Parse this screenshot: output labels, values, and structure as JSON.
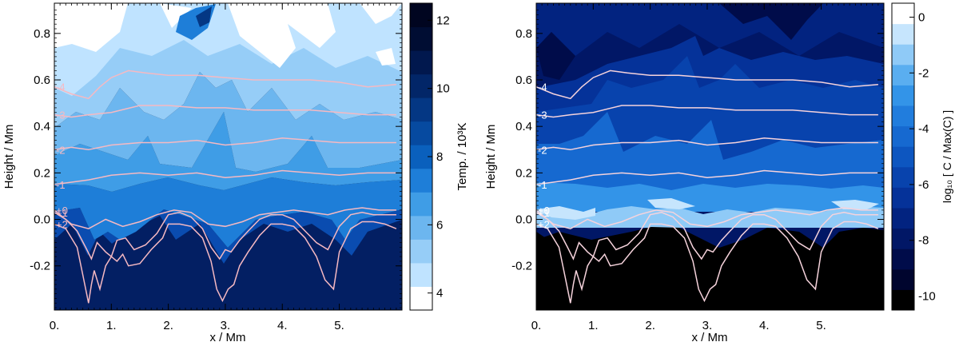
{
  "chart_data": [
    {
      "type": "heatmap",
      "id": "left",
      "xlabel": "x / Mm",
      "ylabel": "Height / Mm",
      "xlim": [
        0,
        6.1
      ],
      "ylim": [
        -0.39,
        0.93
      ],
      "x_ticks": [
        0,
        1,
        2,
        3,
        4,
        5
      ],
      "x_tick_labels": [
        "0.",
        "1.",
        "2.",
        "3.",
        "4.",
        "5."
      ],
      "y_ticks": [
        -0.2,
        0.0,
        0.2,
        0.4,
        0.6,
        0.8
      ],
      "y_tick_labels": [
        "-0.2",
        "0.0",
        "0.2",
        "0.4",
        "0.6",
        "0.8"
      ],
      "colorbar": {
        "label": "Temp. / 10³K",
        "range": [
          3.5,
          12.5
        ],
        "ticks": [
          4,
          6,
          8,
          10,
          12
        ],
        "tick_labels": [
          "4",
          "6",
          "8",
          "10",
          "12"
        ],
        "colors": [
          "#ffffff",
          "#bfe3ff",
          "#96cdf7",
          "#6cb6ef",
          "#3f9de6",
          "#1e7ed8",
          "#0a60bd",
          "#064aa0",
          "#043784",
          "#022668",
          "#01184e",
          "#000d33",
          "#000520"
        ]
      },
      "contour_color": "#f6b9c2",
      "contour_lines": [
        {
          "label": "-4",
          "x": [
            0.0,
            0.3,
            0.6,
            0.8,
            1.0,
            1.3,
            1.6,
            2.0,
            2.5,
            3.0,
            3.5,
            4.0,
            4.5,
            5.0,
            5.5,
            6.0
          ],
          "y": [
            0.57,
            0.54,
            0.52,
            0.57,
            0.61,
            0.64,
            0.63,
            0.62,
            0.62,
            0.61,
            0.6,
            0.6,
            0.6,
            0.59,
            0.57,
            0.58
          ]
        },
        {
          "label": "-3",
          "x": [
            0.0,
            0.3,
            0.6,
            1.0,
            1.5,
            2.0,
            2.5,
            3.0,
            3.5,
            4.0,
            4.5,
            5.0,
            5.5,
            6.0
          ],
          "y": [
            0.45,
            0.44,
            0.45,
            0.46,
            0.49,
            0.49,
            0.48,
            0.48,
            0.47,
            0.47,
            0.47,
            0.46,
            0.45,
            0.45
          ]
        },
        {
          "label": "-2",
          "x": [
            0.0,
            0.3,
            0.6,
            1.0,
            1.5,
            2.0,
            2.5,
            3.0,
            3.5,
            4.0,
            4.5,
            5.0,
            5.5,
            6.0
          ],
          "y": [
            0.3,
            0.31,
            0.3,
            0.32,
            0.33,
            0.33,
            0.34,
            0.32,
            0.33,
            0.35,
            0.34,
            0.33,
            0.33,
            0.33
          ]
        },
        {
          "label": "-1",
          "x": [
            0.0,
            0.3,
            0.6,
            1.0,
            1.5,
            2.0,
            2.5,
            3.0,
            3.5,
            4.0,
            4.5,
            5.0,
            5.5,
            6.0
          ],
          "y": [
            0.15,
            0.16,
            0.17,
            0.19,
            0.2,
            0.19,
            0.2,
            0.18,
            0.19,
            0.21,
            0.2,
            0.19,
            0.2,
            0.2
          ]
        },
        {
          "label": "+0",
          "x": [
            0.0,
            0.3,
            0.6,
            0.9,
            1.2,
            1.5,
            1.8,
            2.1,
            2.4,
            2.7,
            3.0,
            3.3,
            3.6,
            3.9,
            4.2,
            4.5,
            4.8,
            5.1,
            5.4,
            5.7,
            6.0
          ],
          "y": [
            0.04,
            -0.02,
            -0.04,
            0.0,
            -0.03,
            -0.01,
            0.02,
            0.04,
            0.03,
            -0.02,
            -0.03,
            -0.01,
            0.02,
            0.03,
            0.04,
            0.03,
            0.02,
            0.04,
            0.05,
            0.04,
            0.04
          ]
        },
        {
          "label": "+1",
          "x": [
            0.0,
            0.2,
            0.4,
            0.55,
            0.65,
            0.75,
            0.9,
            1.0,
            1.1,
            1.25,
            1.4,
            1.6,
            1.8,
            2.0,
            2.2,
            2.4,
            2.6,
            2.75,
            2.9,
            3.0,
            3.1,
            3.25,
            3.4,
            3.6,
            3.8,
            4.0,
            4.2,
            4.4,
            4.6,
            4.8,
            5.0,
            5.2,
            5.4,
            5.6,
            5.8,
            6.0
          ],
          "y": [
            0.03,
            0.0,
            -0.05,
            -0.12,
            -0.17,
            -0.1,
            -0.14,
            -0.16,
            -0.09,
            -0.08,
            -0.13,
            -0.11,
            -0.06,
            0.02,
            0.03,
            0.01,
            -0.04,
            -0.12,
            -0.17,
            -0.13,
            -0.14,
            -0.09,
            -0.05,
            0.0,
            0.02,
            0.02,
            0.0,
            -0.05,
            -0.1,
            -0.13,
            -0.03,
            0.02,
            0.03,
            0.02,
            0.02,
            0.02
          ]
        },
        {
          "label": "+2",
          "x": [
            0.0,
            0.2,
            0.4,
            0.5,
            0.6,
            0.65,
            0.7,
            0.8,
            0.9,
            1.0,
            1.1,
            1.2,
            1.3,
            1.5,
            1.7,
            1.9,
            2.0,
            2.2,
            2.4,
            2.6,
            2.75,
            2.85,
            2.95,
            3.05,
            3.15,
            3.25,
            3.4,
            3.6,
            3.8,
            4.0,
            4.2,
            4.4,
            4.6,
            4.75,
            4.9,
            5.0,
            5.2,
            5.4,
            5.6,
            5.8,
            6.0
          ],
          "y": [
            -0.02,
            -0.04,
            -0.12,
            -0.24,
            -0.36,
            -0.28,
            -0.22,
            -0.3,
            -0.2,
            -0.16,
            -0.18,
            -0.15,
            -0.2,
            -0.19,
            -0.13,
            -0.08,
            -0.02,
            -0.02,
            -0.03,
            -0.08,
            -0.18,
            -0.3,
            -0.35,
            -0.3,
            -0.28,
            -0.2,
            -0.14,
            -0.07,
            -0.02,
            -0.02,
            -0.03,
            -0.08,
            -0.16,
            -0.26,
            -0.3,
            -0.14,
            -0.04,
            -0.01,
            -0.01,
            -0.02,
            -0.04
          ]
        }
      ]
    },
    {
      "type": "heatmap",
      "id": "right",
      "xlabel": "x / Mm",
      "ylabel": "Height / Mm",
      "xlim": [
        0,
        6.1
      ],
      "ylim": [
        -0.39,
        0.93
      ],
      "x_ticks": [
        0,
        1,
        2,
        3,
        4,
        5
      ],
      "x_tick_labels": [
        "0.",
        "1.",
        "2.",
        "3.",
        "4.",
        "5."
      ],
      "y_ticks": [
        -0.2,
        0.0,
        0.2,
        0.4,
        0.6,
        0.8
      ],
      "y_tick_labels": [
        "-0.2",
        "0.0",
        "0.2",
        "0.4",
        "0.6",
        "0.8"
      ],
      "colorbar": {
        "label": "log₁₀ [ C / Max(C) ]",
        "range": [
          -10.5,
          0.5
        ],
        "ticks": [
          -10,
          -8,
          -6,
          -4,
          -2,
          0
        ],
        "tick_labels": [
          "-10",
          "-8",
          "-6",
          "-4",
          "-2",
          "0"
        ],
        "colors": [
          "#000000",
          "#00052e",
          "#000c4a",
          "#011766",
          "#022380",
          "#053299",
          "#0843ad",
          "#0d56c0",
          "#1669d0",
          "#217ddd",
          "#3394e8",
          "#5aaef0",
          "#8fcaf7",
          "#c6e5fd",
          "#ffffff"
        ]
      },
      "contour_color": "#f6d3dc",
      "contour_lines": [
        {
          "label": "-4",
          "x": [
            0.0,
            0.3,
            0.6,
            0.8,
            1.0,
            1.3,
            1.6,
            2.0,
            2.5,
            3.0,
            3.5,
            4.0,
            4.5,
            5.0,
            5.5,
            6.0
          ],
          "y": [
            0.57,
            0.54,
            0.52,
            0.57,
            0.61,
            0.64,
            0.63,
            0.62,
            0.62,
            0.61,
            0.6,
            0.6,
            0.6,
            0.59,
            0.57,
            0.58
          ]
        },
        {
          "label": "-3",
          "x": [
            0.0,
            0.3,
            0.6,
            1.0,
            1.5,
            2.0,
            2.5,
            3.0,
            3.5,
            4.0,
            4.5,
            5.0,
            5.5,
            6.0
          ],
          "y": [
            0.45,
            0.44,
            0.45,
            0.46,
            0.49,
            0.49,
            0.48,
            0.48,
            0.47,
            0.47,
            0.47,
            0.46,
            0.45,
            0.45
          ]
        },
        {
          "label": "-2",
          "x": [
            0.0,
            0.3,
            0.6,
            1.0,
            1.5,
            2.0,
            2.5,
            3.0,
            3.5,
            4.0,
            4.5,
            5.0,
            5.5,
            6.0
          ],
          "y": [
            0.3,
            0.31,
            0.3,
            0.32,
            0.33,
            0.33,
            0.34,
            0.32,
            0.33,
            0.35,
            0.34,
            0.33,
            0.33,
            0.33
          ]
        },
        {
          "label": "-1",
          "x": [
            0.0,
            0.3,
            0.6,
            1.0,
            1.5,
            2.0,
            2.5,
            3.0,
            3.5,
            4.0,
            4.5,
            5.0,
            5.5,
            6.0
          ],
          "y": [
            0.15,
            0.16,
            0.17,
            0.19,
            0.2,
            0.19,
            0.2,
            0.18,
            0.19,
            0.21,
            0.2,
            0.19,
            0.2,
            0.2
          ]
        },
        {
          "label": "+0",
          "x": [
            0.0,
            0.3,
            0.6,
            0.9,
            1.2,
            1.5,
            1.8,
            2.1,
            2.4,
            2.7,
            3.0,
            3.3,
            3.6,
            3.9,
            4.2,
            4.5,
            4.8,
            5.1,
            5.4,
            5.7,
            6.0
          ],
          "y": [
            0.04,
            -0.02,
            -0.04,
            0.0,
            -0.03,
            -0.01,
            0.02,
            0.04,
            0.03,
            -0.02,
            -0.03,
            -0.01,
            0.02,
            0.03,
            0.04,
            0.03,
            0.02,
            0.04,
            0.05,
            0.04,
            0.04
          ]
        },
        {
          "label": "+1",
          "x": [
            0.0,
            0.2,
            0.4,
            0.55,
            0.65,
            0.75,
            0.9,
            1.0,
            1.1,
            1.25,
            1.4,
            1.6,
            1.8,
            2.0,
            2.2,
            2.4,
            2.6,
            2.75,
            2.9,
            3.0,
            3.1,
            3.25,
            3.4,
            3.6,
            3.8,
            4.0,
            4.2,
            4.4,
            4.6,
            4.8,
            5.0,
            5.2,
            5.4,
            5.6,
            5.8,
            6.0
          ],
          "y": [
            0.03,
            0.0,
            -0.05,
            -0.12,
            -0.17,
            -0.1,
            -0.14,
            -0.16,
            -0.09,
            -0.08,
            -0.13,
            -0.11,
            -0.06,
            0.02,
            0.03,
            0.01,
            -0.04,
            -0.12,
            -0.17,
            -0.13,
            -0.14,
            -0.09,
            -0.05,
            0.0,
            0.02,
            0.02,
            0.0,
            -0.05,
            -0.1,
            -0.13,
            -0.03,
            0.02,
            0.03,
            0.02,
            0.02,
            0.02
          ]
        },
        {
          "label": "+2",
          "x": [
            0.0,
            0.2,
            0.4,
            0.5,
            0.6,
            0.65,
            0.7,
            0.8,
            0.9,
            1.0,
            1.1,
            1.2,
            1.3,
            1.5,
            1.7,
            1.9,
            2.0,
            2.2,
            2.4,
            2.6,
            2.75,
            2.85,
            2.95,
            3.05,
            3.15,
            3.25,
            3.4,
            3.6,
            3.8,
            4.0,
            4.2,
            4.4,
            4.6,
            4.75,
            4.9,
            5.0,
            5.2,
            5.4,
            5.6,
            5.8,
            6.0
          ],
          "y": [
            -0.02,
            -0.04,
            -0.12,
            -0.24,
            -0.36,
            -0.28,
            -0.22,
            -0.3,
            -0.2,
            -0.16,
            -0.18,
            -0.15,
            -0.2,
            -0.19,
            -0.13,
            -0.08,
            -0.02,
            -0.02,
            -0.03,
            -0.08,
            -0.18,
            -0.3,
            -0.35,
            -0.3,
            -0.28,
            -0.2,
            -0.14,
            -0.07,
            -0.02,
            -0.02,
            -0.03,
            -0.08,
            -0.16,
            -0.26,
            -0.3,
            -0.14,
            -0.04,
            -0.01,
            -0.01,
            -0.02,
            -0.04
          ]
        }
      ]
    }
  ]
}
